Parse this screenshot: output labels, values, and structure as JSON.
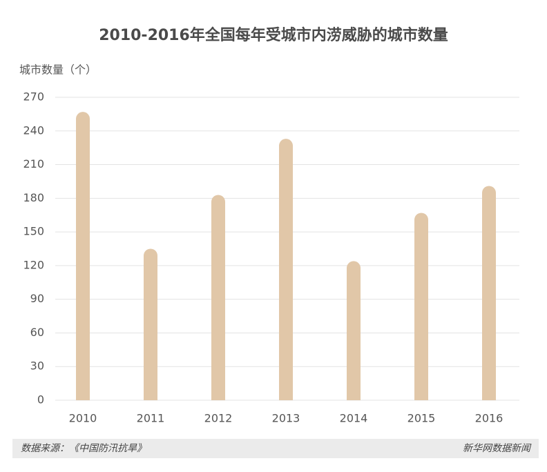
{
  "chart_data": {
    "type": "bar",
    "title": "2010-2016年全国每年受城市内涝威胁的城市数量",
    "y_label": "城市数量（个）",
    "categories": [
      "2010",
      "2011",
      "2012",
      "2013",
      "2014",
      "2015",
      "2016"
    ],
    "values": [
      257,
      135,
      183,
      233,
      124,
      167,
      191
    ],
    "color": "#e1c7a8",
    "ylim": [
      0,
      270
    ],
    "yticks": [
      0,
      30,
      60,
      90,
      120,
      150,
      180,
      210,
      240,
      270
    ],
    "grid": true,
    "source": "数据来源：《中国防汛抗旱》",
    "credit": "新华网数据新闻"
  }
}
